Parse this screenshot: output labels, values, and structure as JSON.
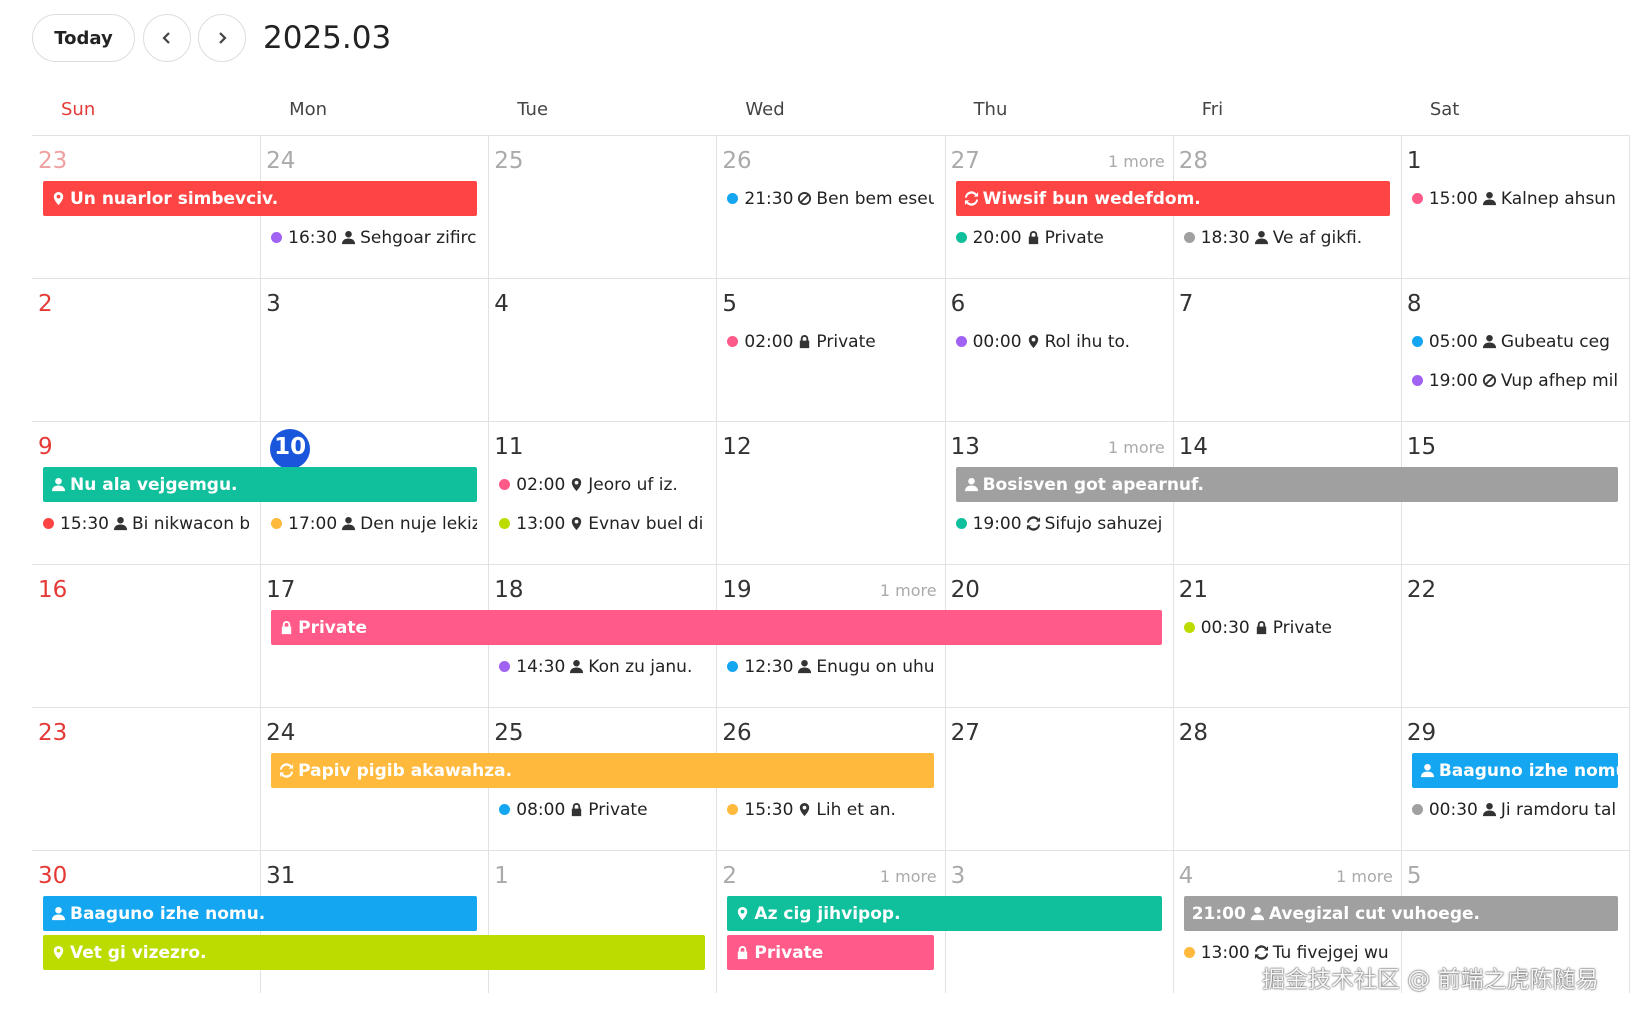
{
  "header": {
    "today_button": "Today",
    "title": "2025.03"
  },
  "weekdays": [
    "Sun",
    "Mon",
    "Tue",
    "Wed",
    "Thu",
    "Fri",
    "Sat"
  ],
  "weeks": [
    {
      "days": [
        {
          "label": "23",
          "muted": true
        },
        {
          "label": "24",
          "muted": true
        },
        {
          "label": "25",
          "muted": true
        },
        {
          "label": "26",
          "muted": true
        },
        {
          "label": "27",
          "muted": true,
          "more": "1 more"
        },
        {
          "label": "28",
          "muted": true
        },
        {
          "label": "1"
        }
      ],
      "events": [
        {
          "kind": "bar",
          "col": 0,
          "span": 2,
          "lane": 0,
          "color": "#ff4444",
          "icon": "pin",
          "text": "Un nuarlor simbevciv."
        },
        {
          "kind": "dot",
          "col": 1,
          "lane": 1,
          "color": "#a062f2",
          "time": "16:30",
          "icon": "person",
          "text": "Sehgoar zifirc"
        },
        {
          "kind": "dot",
          "col": 3,
          "lane": 0,
          "color": "#14a6f0",
          "time": "21:30",
          "icon": "ban",
          "text": "Ben bem eseu"
        },
        {
          "kind": "bar",
          "col": 4,
          "span": 2,
          "lane": 0,
          "color": "#ff4444",
          "icon": "repeat",
          "text": "Wiwsif bun wedefdom."
        },
        {
          "kind": "dot",
          "col": 4,
          "lane": 1,
          "color": "#10c09c",
          "time": "20:00",
          "icon": "lock",
          "text": "Private"
        },
        {
          "kind": "dot",
          "col": 5,
          "lane": 1,
          "color": "#a0a0a0",
          "time": "18:30",
          "icon": "person",
          "text": "Ve af gikfi."
        },
        {
          "kind": "dot",
          "col": 6,
          "lane": 0,
          "color": "#ff5a88",
          "time": "15:00",
          "icon": "person",
          "text": "Kalnep ahsun"
        }
      ]
    },
    {
      "days": [
        {
          "label": "2"
        },
        {
          "label": "3"
        },
        {
          "label": "4"
        },
        {
          "label": "5"
        },
        {
          "label": "6"
        },
        {
          "label": "7"
        },
        {
          "label": "8"
        }
      ],
      "events": [
        {
          "kind": "dot",
          "col": 3,
          "lane": 0,
          "color": "#ff5a88",
          "time": "02:00",
          "icon": "lock",
          "text": "Private"
        },
        {
          "kind": "dot",
          "col": 4,
          "lane": 0,
          "color": "#a062f2",
          "time": "00:00",
          "icon": "pin",
          "text": "Rol ihu to."
        },
        {
          "kind": "dot",
          "col": 6,
          "lane": 0,
          "color": "#14a6f0",
          "time": "05:00",
          "icon": "person",
          "text": "Gubeatu ceg"
        },
        {
          "kind": "dot",
          "col": 6,
          "lane": 1,
          "color": "#a062f2",
          "time": "19:00",
          "icon": "ban",
          "text": "Vup afhep mil"
        }
      ]
    },
    {
      "days": [
        {
          "label": "9"
        },
        {
          "label": "10",
          "today": true
        },
        {
          "label": "11"
        },
        {
          "label": "12"
        },
        {
          "label": "13",
          "more": "1 more"
        },
        {
          "label": "14"
        },
        {
          "label": "15"
        }
      ],
      "events": [
        {
          "kind": "bar",
          "col": 0,
          "span": 2,
          "lane": 0,
          "color": "#10c09c",
          "icon": "person",
          "text": "Nu ala vejgemgu."
        },
        {
          "kind": "dot",
          "col": 0,
          "lane": 1,
          "color": "#ff4444",
          "time": "15:30",
          "icon": "person",
          "text": "Bi nikwacon b"
        },
        {
          "kind": "dot",
          "col": 1,
          "lane": 1,
          "color": "#ffb93c",
          "time": "17:00",
          "icon": "person",
          "text": "Den nuje lekiz"
        },
        {
          "kind": "dot",
          "col": 2,
          "lane": 0,
          "color": "#ff5a88",
          "time": "02:00",
          "icon": "pin",
          "text": "Jeoro uf iz."
        },
        {
          "kind": "dot",
          "col": 2,
          "lane": 1,
          "color": "#bcdc00",
          "time": "13:00",
          "icon": "pin",
          "text": "Evnav buel di."
        },
        {
          "kind": "bar",
          "col": 4,
          "span": 3,
          "lane": 0,
          "color": "#a0a0a0",
          "icon": "person",
          "text": "Bosisven got apearnuf."
        },
        {
          "kind": "dot",
          "col": 4,
          "lane": 1,
          "color": "#10c09c",
          "time": "19:00",
          "icon": "repeat",
          "text": "Sifujo sahuzej"
        }
      ]
    },
    {
      "days": [
        {
          "label": "16"
        },
        {
          "label": "17"
        },
        {
          "label": "18"
        },
        {
          "label": "19",
          "more": "1 more"
        },
        {
          "label": "20"
        },
        {
          "label": "21"
        },
        {
          "label": "22"
        }
      ],
      "events": [
        {
          "kind": "bar",
          "col": 1,
          "span": 4,
          "lane": 0,
          "color": "#ff5a88",
          "icon": "lock",
          "text": "Private"
        },
        {
          "kind": "dot",
          "col": 2,
          "lane": 1,
          "color": "#a062f2",
          "time": "14:30",
          "icon": "person",
          "text": "Kon zu janu."
        },
        {
          "kind": "dot",
          "col": 3,
          "lane": 1,
          "color": "#14a6f0",
          "time": "12:30",
          "icon": "person",
          "text": "Enugu on uhu"
        },
        {
          "kind": "dot",
          "col": 5,
          "lane": 0,
          "color": "#bcdc00",
          "time": "00:30",
          "icon": "lock",
          "text": "Private"
        }
      ]
    },
    {
      "days": [
        {
          "label": "23"
        },
        {
          "label": "24"
        },
        {
          "label": "25"
        },
        {
          "label": "26"
        },
        {
          "label": "27"
        },
        {
          "label": "28"
        },
        {
          "label": "29"
        }
      ],
      "events": [
        {
          "kind": "bar",
          "col": 1,
          "span": 3,
          "lane": 0,
          "color": "#ffb93c",
          "icon": "repeat",
          "text": "Papiv pigib akawahza."
        },
        {
          "kind": "dot",
          "col": 2,
          "lane": 1,
          "color": "#14a6f0",
          "time": "08:00",
          "icon": "lock",
          "text": "Private"
        },
        {
          "kind": "dot",
          "col": 3,
          "lane": 1,
          "color": "#ffb93c",
          "time": "15:30",
          "icon": "pin",
          "text": "Lih et an."
        },
        {
          "kind": "bar",
          "col": 6,
          "span": 1,
          "lane": 0,
          "color": "#14a6f0",
          "icon": "person",
          "text": "Baaguno izhe nomu."
        },
        {
          "kind": "dot",
          "col": 6,
          "lane": 1,
          "color": "#a0a0a0",
          "time": "00:30",
          "icon": "person",
          "text": "Ji ramdoru tal"
        }
      ]
    },
    {
      "days": [
        {
          "label": "30"
        },
        {
          "label": "31"
        },
        {
          "label": "1",
          "muted": true
        },
        {
          "label": "2",
          "muted": true,
          "more": "1 more"
        },
        {
          "label": "3",
          "muted": true
        },
        {
          "label": "4",
          "muted": true,
          "more": "1 more"
        },
        {
          "label": "5",
          "muted": true
        }
      ],
      "events": [
        {
          "kind": "bar",
          "col": 0,
          "span": 2,
          "lane": 0,
          "color": "#14a6f0",
          "icon": "person",
          "text": "Baaguno izhe nomu."
        },
        {
          "kind": "bar",
          "col": 0,
          "span": 3,
          "lane": 1,
          "color": "#bcdc00",
          "icon": "pin",
          "text": "Vet gi vizezro."
        },
        {
          "kind": "bar",
          "col": 3,
          "span": 2,
          "lane": 0,
          "color": "#10c09c",
          "icon": "pin",
          "text": "Az cig jihvipop."
        },
        {
          "kind": "bar",
          "col": 3,
          "span": 1,
          "lane": 1,
          "color": "#ff5a88",
          "icon": "lock",
          "text": "Private"
        },
        {
          "kind": "bar",
          "col": 5,
          "span": 2,
          "lane": 0,
          "color": "#a0a0a0",
          "icon": "person",
          "time": "21:00",
          "text": "Avegizal cut vuhoege."
        },
        {
          "kind": "dot",
          "col": 5,
          "lane": 1,
          "color": "#ffb93c",
          "time": "13:00",
          "icon": "repeat",
          "text": "Tu fivejgej wu"
        }
      ]
    }
  ],
  "watermark": "掘金技术社区 @ 前端之虎陈随易"
}
